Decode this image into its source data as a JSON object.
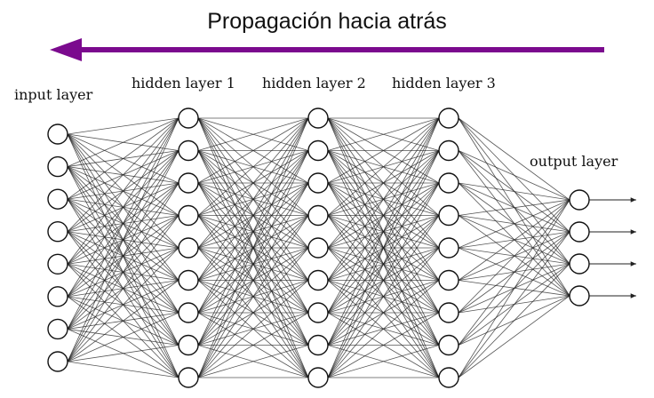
{
  "title": "Propagación hacia atrás",
  "arrow": {
    "direction": "left",
    "color": "#7b0a8e"
  },
  "layers": [
    {
      "label": "input layer",
      "nodes": 8
    },
    {
      "label": "hidden layer 1",
      "nodes": 9
    },
    {
      "label": "hidden layer 2",
      "nodes": 9
    },
    {
      "label": "hidden layer 3",
      "nodes": 9
    },
    {
      "label": "output layer",
      "nodes": 4
    }
  ],
  "connectivity": "fully-connected",
  "output_arrows": 4
}
